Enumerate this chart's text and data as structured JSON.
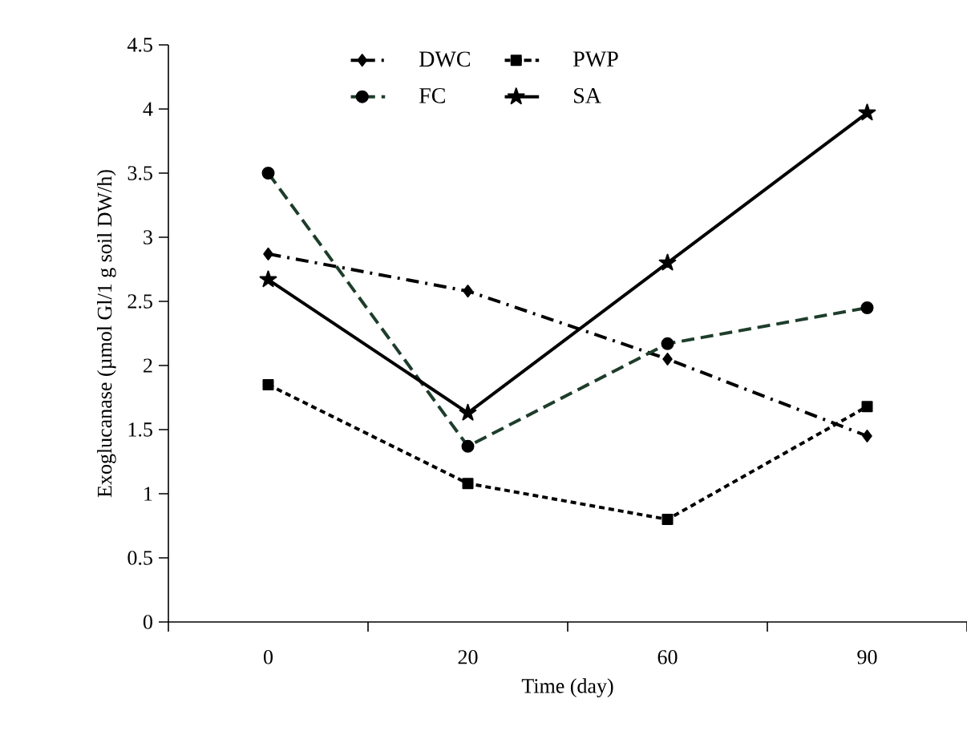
{
  "chart_data": {
    "type": "line",
    "xlabel": "Time (day)",
    "ylabel": "Exoglucanase (µmol Gl/1 g soil DW/h)",
    "categories": [
      "0",
      "20",
      "60",
      "90"
    ],
    "ylim": [
      0,
      4.5
    ],
    "yticks": [
      0,
      0.5,
      1,
      1.5,
      2,
      2.5,
      3,
      3.5,
      4,
      4.5
    ],
    "grid": false,
    "legend": "top",
    "series": [
      {
        "name": "DWC",
        "color": "#000000",
        "marker": "diamond",
        "line_style": "dashdot",
        "values": [
          2.87,
          2.58,
          2.05,
          1.45
        ]
      },
      {
        "name": "PWP",
        "color": "#000000",
        "marker": "square",
        "line_style": "dotted",
        "values": [
          1.85,
          1.08,
          0.8,
          1.68
        ]
      },
      {
        "name": "FC",
        "color": "#1e3d2b",
        "marker": "circle",
        "line_style": "dashed",
        "values": [
          3.5,
          1.37,
          2.17,
          2.45
        ]
      },
      {
        "name": "SA",
        "color": "#000000",
        "marker": "star",
        "line_style": "solid",
        "values": [
          2.67,
          1.63,
          2.8,
          3.97
        ]
      }
    ]
  }
}
